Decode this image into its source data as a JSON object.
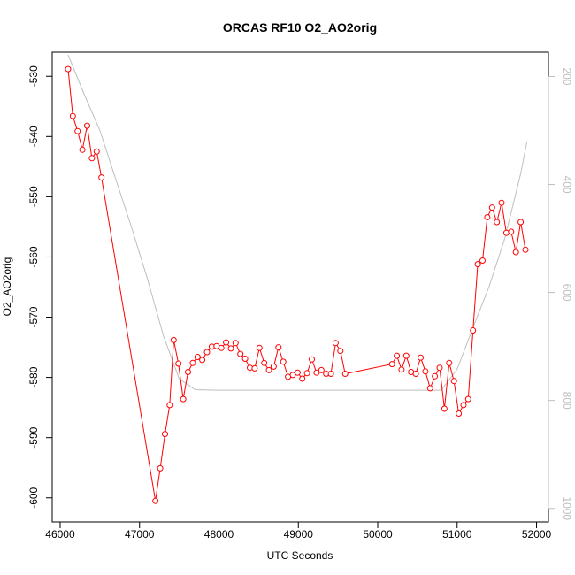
{
  "chart_data": {
    "type": "line",
    "title": "ORCAS RF10 O2_AO2orig",
    "xlabel": "UTC Seconds",
    "ylabel": "O2_AO2orig",
    "xlim": [
      45900,
      52150
    ],
    "ylim": [
      -604,
      -526
    ],
    "x_ticks": [
      46000,
      47000,
      48000,
      49000,
      50000,
      51000,
      52000
    ],
    "y_ticks": [
      -530,
      -540,
      -550,
      -560,
      -570,
      -580,
      -590,
      -600
    ],
    "y2_lim": [
      1025,
      155
    ],
    "y2_ticks": [
      200,
      400,
      600,
      800,
      1000
    ],
    "colors": {
      "series": "#ff0000",
      "secondary": "#bebebe",
      "axis": "#000000"
    },
    "series": [
      {
        "values_x": [
          46100,
          46160,
          46220,
          46280,
          46340,
          46400,
          46460,
          46520,
          47200,
          47260,
          47320,
          47380,
          47430,
          47490,
          47550,
          47610,
          47670,
          47730,
          47790,
          47850,
          47910,
          47970,
          48030,
          48090,
          48150,
          48210,
          48270,
          48330,
          48390,
          48450,
          48510,
          48570,
          48630,
          48690,
          48750,
          48810,
          48870,
          48930,
          48990,
          49050,
          49110,
          49170,
          49230,
          49290,
          49350,
          49410,
          49470,
          49530,
          49590,
          50180,
          50240,
          50300,
          50360,
          50420,
          50480,
          50540,
          50600,
          50660,
          50720,
          50780,
          50840,
          50900,
          50960,
          51020,
          51080,
          51140,
          51200,
          51260,
          51320,
          51380,
          51440,
          51500,
          51560,
          51620,
          51680,
          51740,
          51800,
          51860
        ],
        "values_y": [
          -528.8,
          -536.6,
          -539.1,
          -542.2,
          -538.2,
          -543.6,
          -542.5,
          -546.8,
          -600.5,
          -595.1,
          -589.4,
          -584.6,
          -573.8,
          -577.7,
          -583.6,
          -579.1,
          -577.6,
          -576.6,
          -577.1,
          -575.8,
          -574.9,
          -574.8,
          -575.1,
          -574.2,
          -575.2,
          -574.3,
          -576.1,
          -576.9,
          -578.4,
          -578.5,
          -575.1,
          -577.6,
          -578.8,
          -578.2,
          -575.0,
          -577.4,
          -579.9,
          -579.6,
          -579.2,
          -580.2,
          -579.3,
          -577.0,
          -579.2,
          -578.8,
          -579.4,
          -579.4,
          -574.3,
          -575.6,
          -579.4,
          -577.8,
          -576.4,
          -578.7,
          -576.4,
          -579.1,
          -579.4,
          -576.7,
          -579.0,
          -581.8,
          -579.8,
          -578.4,
          -585.2,
          -577.6,
          -580.6,
          -586.0,
          -584.6,
          -583.6,
          -572.2,
          -561.2,
          -560.6,
          -553.4,
          -551.8,
          -554.2,
          -551.0,
          -556.0,
          -555.8,
          -559.2,
          -554.2,
          -558.8
        ]
      },
      {
        "values_x": [
          46100,
          46300,
          46500,
          46700,
          46900,
          47100,
          47300,
          47500,
          47700,
          48000,
          48500,
          49000,
          49500,
          50000,
          50500,
          50800,
          51000,
          51200,
          51400,
          51600,
          51800,
          51880
        ],
        "values_y2": [
          160,
          232,
          300,
          390,
          480,
          575,
          680,
          760,
          780,
          781,
          781,
          781,
          781,
          781,
          781,
          781,
          742,
          665,
          590,
          500,
          380,
          320
        ]
      }
    ]
  }
}
